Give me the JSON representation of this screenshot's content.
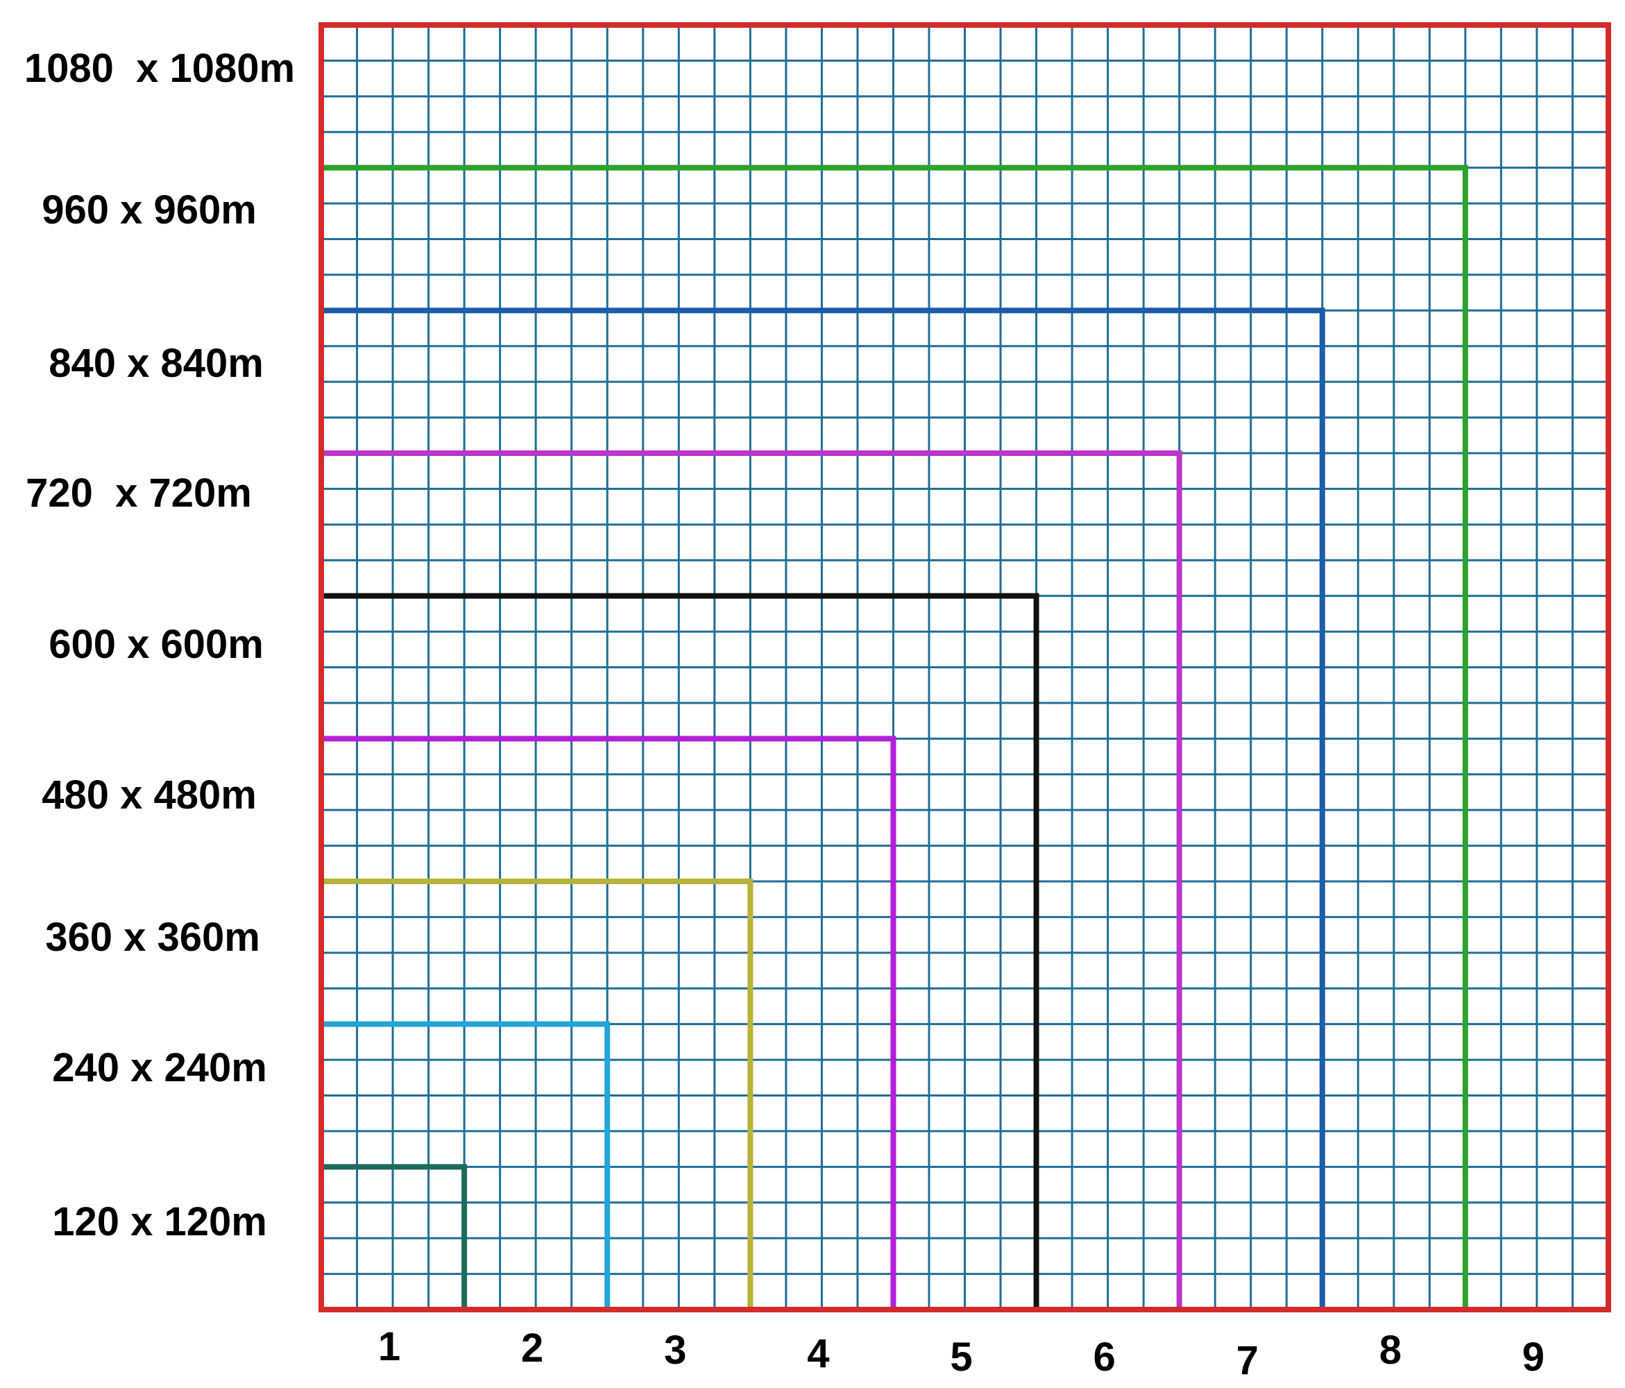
{
  "grid": {
    "cells_per_side": 36,
    "line_color": "#1f6f96",
    "border_color": "#d42a2a"
  },
  "nested_squares": [
    {
      "label": "120 x 120m",
      "cells": 4,
      "color": "#1e6b5e"
    },
    {
      "label": "240 x 240m",
      "cells": 8,
      "color": "#22a5d8"
    },
    {
      "label": "360 x 360m",
      "cells": 12,
      "color": "#b6b23a"
    },
    {
      "label": "480 x 480m",
      "cells": 16,
      "color": "#b31fd6"
    },
    {
      "label": "600 x 600m",
      "cells": 20,
      "color": "#111111"
    },
    {
      "label": "720  x 720m",
      "cells": 24,
      "color": "#bb35c9"
    },
    {
      "label": "840 x 840m",
      "cells": 28,
      "color": "#1c5ca8"
    },
    {
      "label": "960 x 960m",
      "cells": 32,
      "color": "#2ca32c"
    },
    {
      "label": "1080  x 1080m",
      "cells": 36,
      "color": "#d42a2a"
    }
  ],
  "column_labels": [
    "1",
    "2",
    "3",
    "4",
    "5",
    "6",
    "7",
    "8",
    "9"
  ]
}
